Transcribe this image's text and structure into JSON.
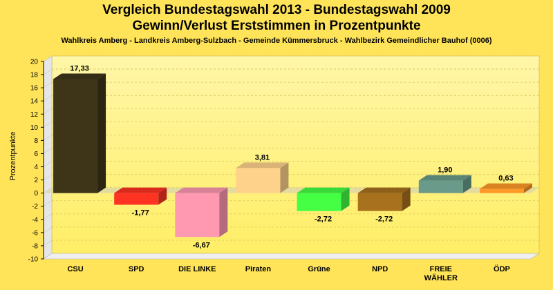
{
  "chart_data": {
    "type": "bar",
    "title": "Vergleich Bundestagswahl 2013 - Bundestagswahl 2009",
    "subtitle": "Gewinn/Verlust Erststimmen in Prozentpunkte",
    "caption": "Wahlkreis Amberg - Landkreis Amberg-Sulzbach - Gemeinde Kümmersbruck - Wahlbezirk Gemeindlicher Bauhof (0006)",
    "xlabel": "",
    "ylabel": "Prozentpunkte",
    "ylim": [
      -10,
      20
    ],
    "yticks": [
      "20",
      "18",
      "16",
      "14",
      "12",
      "10",
      "8",
      "6",
      "4",
      "2",
      "0",
      "-2",
      "-4",
      "-6",
      "-8",
      "-10"
    ],
    "grid": true,
    "categories": [
      "CSU",
      "SPD",
      "DIE LINKE",
      "Piraten",
      "Grüne",
      "NPD",
      "FREIE WÄHLER",
      "ÖDP"
    ],
    "category_lines": [
      [
        "CSU"
      ],
      [
        "SPD"
      ],
      [
        "DIE LINKE"
      ],
      [
        "Piraten"
      ],
      [
        "Grüne"
      ],
      [
        "NPD"
      ],
      [
        "FREIE",
        "WÄHLER"
      ],
      [
        "ÖDP"
      ]
    ],
    "values": [
      17.33,
      -1.77,
      -6.67,
      3.81,
      -2.72,
      -2.72,
      1.9,
      0.63
    ],
    "value_labels": [
      "17,33",
      "-1,77",
      "-6,67",
      "3,81",
      "-2,72",
      "-2,72",
      "1,90",
      "0,63"
    ],
    "colors": [
      "#3E3519",
      "#FF3322",
      "#FF99B2",
      "#FFD28C",
      "#44FF44",
      "#A8711E",
      "#6A9B8A",
      "#FF9A28"
    ]
  }
}
